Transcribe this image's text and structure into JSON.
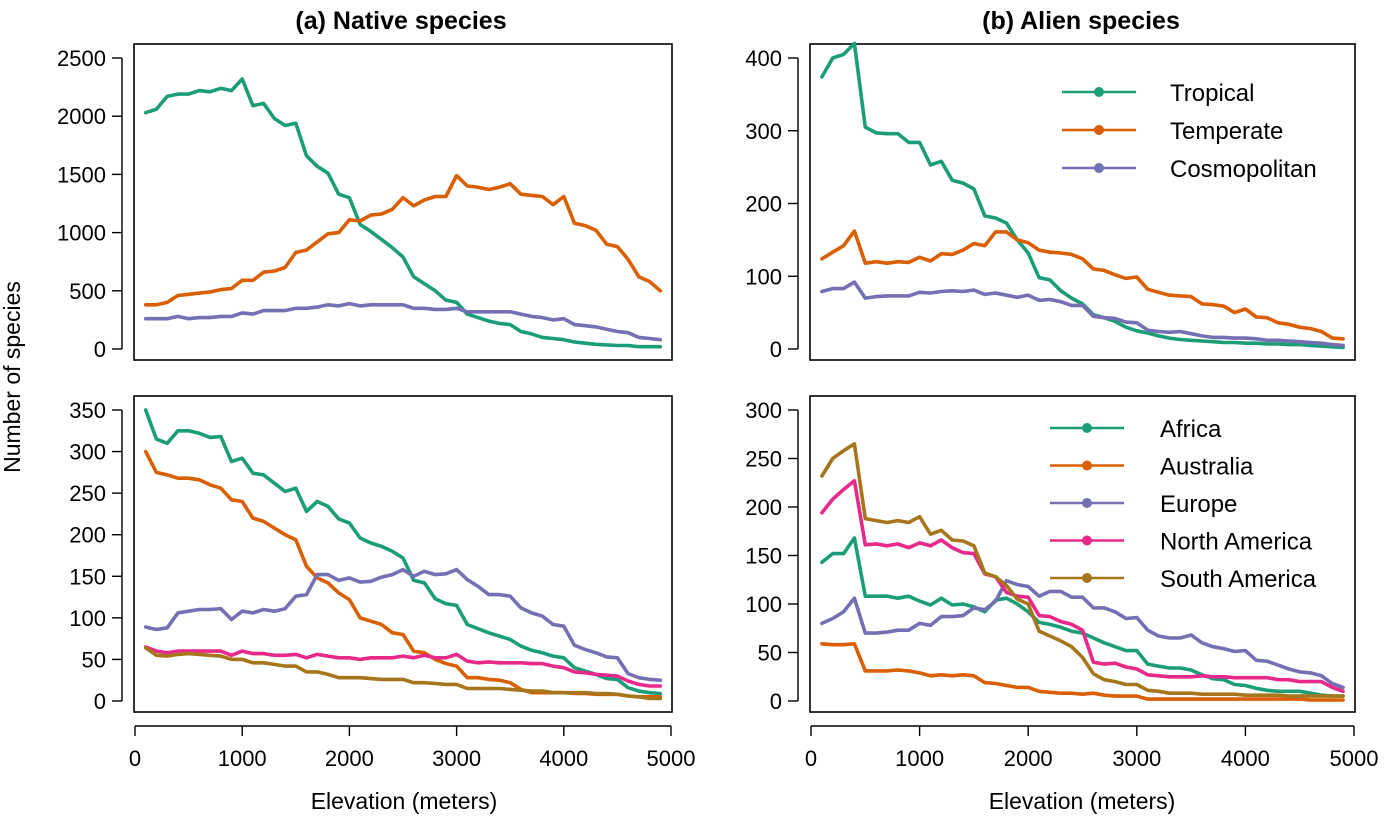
{
  "figure": {
    "title_a": "(a) Native species",
    "title_b": "(b) Alien species",
    "xlabel": "Elevation (meters)",
    "ylabel": "Number of species"
  },
  "colors": {
    "Tropical": "#1b9e77",
    "Temperate": "#d95f02",
    "Cosmopolitan": "#7570b3",
    "Africa": "#1b9e77",
    "Australia": "#d95f02",
    "Europe": "#7570b3",
    "North America": "#e7298a",
    "South America": "#a6761d"
  },
  "chart_data": [
    {
      "type": "line",
      "panel": "native-top",
      "title": "(a) Native species",
      "xlabel": "",
      "ylabel": "",
      "xlim": [
        0,
        5000
      ],
      "ylim": [
        0,
        2500
      ],
      "xticks": [
        "0",
        "1000",
        "2000",
        "3000",
        "4000",
        "5000"
      ],
      "yticks": [
        "0",
        "500",
        "1000",
        "1500",
        "2000",
        "2500"
      ],
      "legend": "",
      "x": [
        100,
        200,
        300,
        400,
        500,
        600,
        700,
        800,
        900,
        1000,
        1100,
        1200,
        1300,
        1400,
        1500,
        1600,
        1700,
        1800,
        1900,
        2000,
        2100,
        2200,
        2300,
        2400,
        2500,
        2600,
        2700,
        2800,
        2900,
        3000,
        3100,
        3200,
        3300,
        3400,
        3500,
        3600,
        3700,
        3800,
        3900,
        4000,
        4100,
        4200,
        4300,
        4400,
        4500,
        4600,
        4700,
        4800,
        4900
      ],
      "series": [
        {
          "name": "Tropical",
          "values": [
            2030,
            2060,
            2170,
            2190,
            2190,
            2220,
            2210,
            2240,
            2220,
            2320,
            2090,
            2110,
            1980,
            1920,
            1940,
            1660,
            1570,
            1510,
            1330,
            1300,
            1070,
            1010,
            940,
            870,
            790,
            620,
            560,
            500,
            420,
            400,
            300,
            270,
            240,
            220,
            210,
            150,
            130,
            100,
            90,
            80,
            60,
            50,
            40,
            35,
            30,
            30,
            20,
            20,
            20
          ]
        },
        {
          "name": "Temperate",
          "values": [
            380,
            380,
            400,
            460,
            470,
            480,
            490,
            510,
            520,
            590,
            590,
            660,
            670,
            700,
            830,
            850,
            920,
            990,
            1000,
            1110,
            1100,
            1150,
            1160,
            1200,
            1300,
            1230,
            1280,
            1310,
            1310,
            1490,
            1400,
            1390,
            1370,
            1390,
            1420,
            1330,
            1320,
            1310,
            1240,
            1310,
            1080,
            1060,
            1020,
            900,
            880,
            770,
            620,
            580,
            500
          ]
        },
        {
          "name": "Cosmopolitan",
          "values": [
            260,
            260,
            260,
            280,
            260,
            270,
            270,
            280,
            280,
            310,
            300,
            330,
            330,
            330,
            350,
            350,
            360,
            380,
            370,
            390,
            370,
            380,
            380,
            380,
            380,
            350,
            350,
            340,
            340,
            350,
            320,
            320,
            320,
            320,
            320,
            300,
            280,
            270,
            250,
            260,
            210,
            200,
            190,
            170,
            150,
            140,
            100,
            90,
            80
          ]
        }
      ]
    },
    {
      "type": "line",
      "panel": "alien-top",
      "title": "(b) Alien species",
      "xlabel": "",
      "ylabel": "",
      "xlim": [
        0,
        5000
      ],
      "ylim": [
        0,
        400
      ],
      "xticks": [
        "0",
        "1000",
        "2000",
        "3000",
        "4000",
        "5000"
      ],
      "yticks": [
        "0",
        "100",
        "200",
        "300",
        "400"
      ],
      "legend": "top-right",
      "x": [
        100,
        200,
        300,
        400,
        500,
        600,
        700,
        800,
        900,
        1000,
        1100,
        1200,
        1300,
        1400,
        1500,
        1600,
        1700,
        1800,
        1900,
        2000,
        2100,
        2200,
        2300,
        2400,
        2500,
        2600,
        2700,
        2800,
        2900,
        3000,
        3100,
        3200,
        3300,
        3400,
        3500,
        3600,
        3700,
        3800,
        3900,
        4000,
        4100,
        4200,
        4300,
        4400,
        4500,
        4600,
        4700,
        4800,
        4900
      ],
      "series": [
        {
          "name": "Tropical",
          "values": [
            374,
            400,
            405,
            420,
            305,
            297,
            296,
            296,
            284,
            284,
            253,
            258,
            232,
            228,
            220,
            183,
            180,
            173,
            150,
            132,
            98,
            95,
            80,
            70,
            62,
            47,
            43,
            38,
            30,
            25,
            22,
            18,
            15,
            13,
            12,
            11,
            10,
            9,
            9,
            8,
            8,
            7,
            7,
            6,
            6,
            5,
            4,
            3,
            2
          ]
        },
        {
          "name": "Temperate",
          "values": [
            124,
            133,
            142,
            162,
            118,
            120,
            118,
            120,
            119,
            126,
            121,
            131,
            130,
            136,
            145,
            142,
            161,
            161,
            150,
            146,
            136,
            133,
            132,
            130,
            124,
            110,
            108,
            102,
            97,
            99,
            82,
            78,
            74,
            73,
            72,
            62,
            61,
            59,
            50,
            55,
            44,
            43,
            36,
            34,
            30,
            28,
            24,
            15,
            14
          ]
        },
        {
          "name": "Cosmopolitan",
          "values": [
            79,
            83,
            83,
            92,
            70,
            72,
            73,
            73,
            73,
            78,
            77,
            79,
            80,
            79,
            81,
            75,
            77,
            74,
            71,
            74,
            67,
            68,
            65,
            60,
            60,
            45,
            43,
            42,
            37,
            36,
            26,
            24,
            23,
            24,
            21,
            18,
            16,
            16,
            15,
            15,
            14,
            12,
            12,
            11,
            10,
            9,
            8,
            6,
            5
          ]
        }
      ]
    },
    {
      "type": "line",
      "panel": "native-bottom",
      "title": "",
      "xlabel": "Elevation (meters)",
      "ylabel": "",
      "xlim": [
        0,
        5000
      ],
      "ylim": [
        0,
        350
      ],
      "xticks": [
        "0",
        "1000",
        "2000",
        "3000",
        "4000",
        "5000"
      ],
      "yticks": [
        "0",
        "50",
        "100",
        "150",
        "200",
        "250",
        "300",
        "350"
      ],
      "legend": "",
      "x": [
        100,
        200,
        300,
        400,
        500,
        600,
        700,
        800,
        900,
        1000,
        1100,
        1200,
        1300,
        1400,
        1500,
        1600,
        1700,
        1800,
        1900,
        2000,
        2100,
        2200,
        2300,
        2400,
        2500,
        2600,
        2700,
        2800,
        2900,
        3000,
        3100,
        3200,
        3300,
        3400,
        3500,
        3600,
        3700,
        3800,
        3900,
        4000,
        4100,
        4200,
        4300,
        4400,
        4500,
        4600,
        4700,
        4800,
        4900
      ],
      "series": [
        {
          "name": "Africa",
          "values": [
            350,
            315,
            310,
            325,
            325,
            322,
            317,
            318,
            288,
            292,
            274,
            272,
            262,
            252,
            256,
            228,
            240,
            234,
            219,
            214,
            196,
            190,
            186,
            180,
            172,
            145,
            142,
            123,
            117,
            115,
            92,
            87,
            82,
            78,
            74,
            66,
            61,
            58,
            54,
            52,
            40,
            36,
            32,
            27,
            26,
            16,
            12,
            10,
            9
          ]
        },
        {
          "name": "Australia",
          "values": [
            300,
            275,
            272,
            268,
            268,
            266,
            260,
            256,
            242,
            240,
            220,
            216,
            208,
            200,
            194,
            162,
            148,
            142,
            130,
            122,
            100,
            96,
            92,
            82,
            80,
            60,
            58,
            50,
            45,
            42,
            28,
            28,
            26,
            25,
            22,
            14,
            10,
            10,
            10,
            10,
            9,
            9,
            8,
            8,
            8,
            6,
            5,
            5,
            5
          ]
        },
        {
          "name": "Europe",
          "values": [
            89,
            86,
            88,
            106,
            108,
            110,
            110,
            111,
            98,
            108,
            106,
            110,
            108,
            111,
            126,
            128,
            152,
            152,
            145,
            148,
            143,
            144,
            149,
            152,
            158,
            150,
            156,
            152,
            153,
            158,
            146,
            138,
            128,
            128,
            126,
            112,
            106,
            102,
            92,
            90,
            67,
            62,
            58,
            53,
            52,
            33,
            28,
            26,
            25
          ]
        },
        {
          "name": "North America",
          "values": [
            65,
            60,
            58,
            60,
            60,
            60,
            60,
            60,
            55,
            60,
            57,
            57,
            55,
            55,
            56,
            52,
            56,
            54,
            52,
            52,
            50,
            52,
            52,
            52,
            54,
            52,
            55,
            52,
            52,
            56,
            48,
            46,
            47,
            46,
            46,
            46,
            45,
            45,
            42,
            40,
            35,
            34,
            32,
            31,
            30,
            24,
            20,
            18,
            18
          ]
        },
        {
          "name": "South America",
          "values": [
            64,
            55,
            54,
            56,
            57,
            56,
            55,
            54,
            50,
            50,
            46,
            46,
            44,
            42,
            42,
            35,
            35,
            32,
            28,
            28,
            28,
            27,
            26,
            26,
            26,
            22,
            22,
            21,
            20,
            20,
            15,
            15,
            15,
            15,
            14,
            13,
            12,
            12,
            10,
            10,
            10,
            10,
            9,
            9,
            8,
            6,
            5,
            3,
            3
          ]
        }
      ]
    },
    {
      "type": "line",
      "panel": "alien-bottom",
      "title": "",
      "xlabel": "Elevation (meters)",
      "ylabel": "",
      "xlim": [
        0,
        5000
      ],
      "ylim": [
        0,
        300
      ],
      "xticks": [
        "0",
        "1000",
        "2000",
        "3000",
        "4000",
        "5000"
      ],
      "yticks": [
        "0",
        "50",
        "100",
        "150",
        "200",
        "250",
        "300"
      ],
      "legend": "top-right",
      "x": [
        100,
        200,
        300,
        400,
        500,
        600,
        700,
        800,
        900,
        1000,
        1100,
        1200,
        1300,
        1400,
        1500,
        1600,
        1700,
        1800,
        1900,
        2000,
        2100,
        2200,
        2300,
        2400,
        2500,
        2600,
        2700,
        2800,
        2900,
        3000,
        3100,
        3200,
        3300,
        3400,
        3500,
        3600,
        3700,
        3800,
        3900,
        4000,
        4100,
        4200,
        4300,
        4400,
        4500,
        4600,
        4700,
        4800,
        4900
      ],
      "series": [
        {
          "name": "Africa",
          "values": [
            143,
            152,
            152,
            168,
            108,
            108,
            108,
            106,
            108,
            103,
            99,
            106,
            99,
            100,
            97,
            92,
            104,
            106,
            100,
            92,
            81,
            79,
            76,
            72,
            70,
            65,
            60,
            56,
            52,
            52,
            38,
            36,
            34,
            34,
            32,
            27,
            23,
            22,
            17,
            16,
            13,
            11,
            10,
            10,
            10,
            8,
            6,
            5,
            5
          ]
        },
        {
          "name": "Australia",
          "values": [
            59,
            58,
            58,
            59,
            31,
            31,
            31,
            32,
            31,
            29,
            26,
            27,
            26,
            27,
            26,
            19,
            18,
            16,
            14,
            14,
            10,
            9,
            8,
            8,
            7,
            8,
            6,
            5,
            5,
            5,
            2,
            2,
            2,
            2,
            2,
            2,
            2,
            2,
            2,
            2,
            2,
            2,
            2,
            2,
            2,
            1,
            1,
            1,
            1
          ]
        },
        {
          "name": "Europe",
          "values": [
            80,
            85,
            92,
            106,
            70,
            70,
            71,
            73,
            73,
            80,
            78,
            87,
            87,
            88,
            96,
            94,
            103,
            124,
            120,
            118,
            108,
            113,
            113,
            107,
            107,
            96,
            96,
            92,
            85,
            86,
            73,
            67,
            65,
            65,
            68,
            60,
            56,
            54,
            51,
            52,
            42,
            41,
            37,
            33,
            30,
            29,
            26,
            18,
            14
          ]
        },
        {
          "name": "North America",
          "values": [
            194,
            208,
            218,
            227,
            161,
            162,
            160,
            162,
            158,
            163,
            160,
            166,
            158,
            153,
            152,
            131,
            128,
            112,
            108,
            107,
            88,
            87,
            82,
            79,
            73,
            40,
            38,
            39,
            35,
            33,
            27,
            26,
            25,
            25,
            25,
            26,
            25,
            25,
            24,
            24,
            24,
            24,
            22,
            22,
            20,
            20,
            20,
            14,
            10
          ]
        },
        {
          "name": "South America",
          "values": [
            232,
            250,
            258,
            265,
            188,
            186,
            184,
            186,
            184,
            190,
            172,
            176,
            166,
            165,
            160,
            132,
            128,
            119,
            105,
            100,
            72,
            67,
            62,
            56,
            45,
            28,
            22,
            20,
            17,
            17,
            11,
            10,
            8,
            8,
            8,
            7,
            7,
            7,
            7,
            6,
            6,
            6,
            6,
            5,
            5,
            5,
            5,
            5,
            5
          ]
        }
      ]
    }
  ]
}
